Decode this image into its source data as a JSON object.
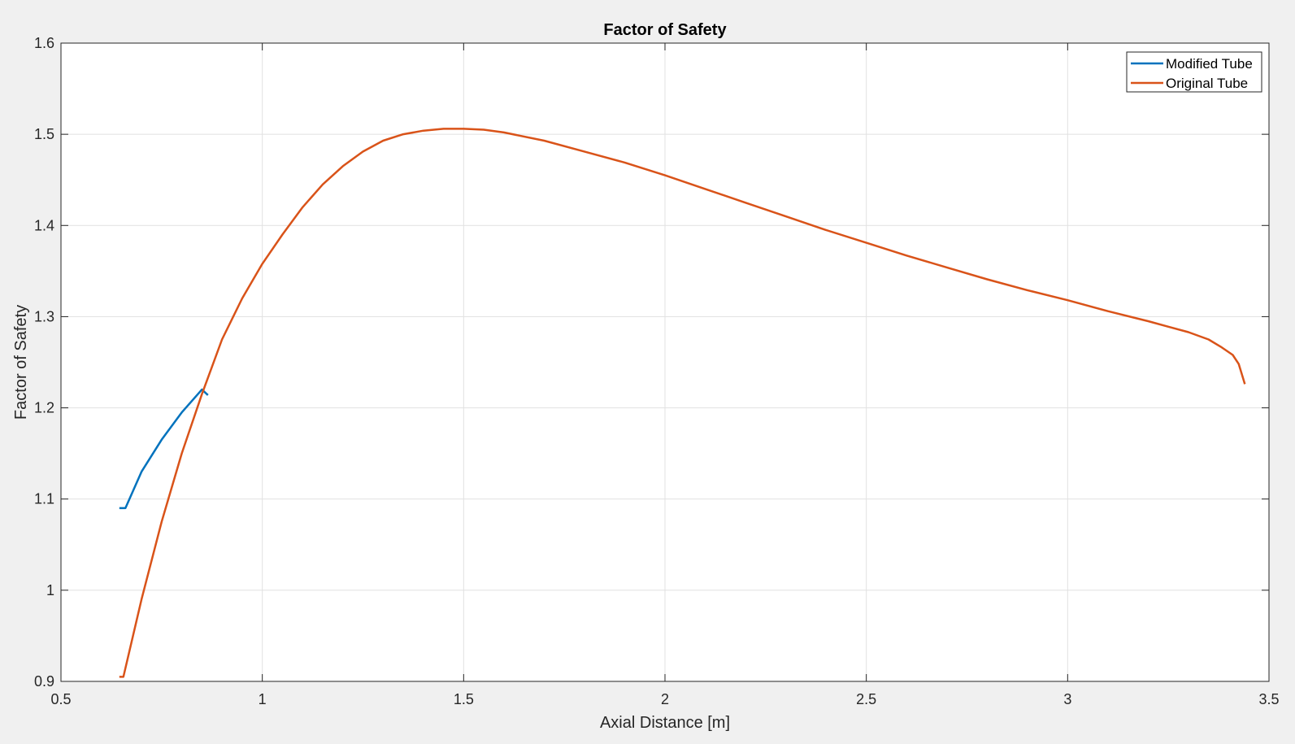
{
  "window": {
    "background": "#f0f0f0"
  },
  "chart_data": {
    "type": "line",
    "title": "Factor of Safety",
    "xlabel": "Axial Distance [m]",
    "ylabel": "Factor of Safety",
    "xlim": [
      0.5,
      3.5
    ],
    "ylim": [
      0.9,
      1.6
    ],
    "xticks": [
      0.5,
      1,
      1.5,
      2,
      2.5,
      3,
      3.5
    ],
    "xtick_labels": [
      "0.5",
      "1",
      "1.5",
      "2",
      "2.5",
      "3",
      "3.5"
    ],
    "yticks": [
      0.9,
      1.0,
      1.1,
      1.2,
      1.3,
      1.4,
      1.5,
      1.6
    ],
    "ytick_labels": [
      "0.9",
      "1",
      "1.1",
      "1.2",
      "1.3",
      "1.4",
      "1.5",
      "1.6"
    ],
    "grid": true,
    "legend_position": "top-right",
    "series": [
      {
        "name": "Modified Tube",
        "color": "#0072bd",
        "x": [
          0.645,
          0.66,
          0.7,
          0.75,
          0.8,
          0.85,
          0.865
        ],
        "y": [
          1.09,
          1.09,
          1.13,
          1.165,
          1.195,
          1.22,
          1.214
        ]
      },
      {
        "name": "Original Tube",
        "color": "#d95319",
        "x": [
          0.645,
          0.655,
          0.7,
          0.75,
          0.8,
          0.85,
          0.9,
          0.95,
          1.0,
          1.05,
          1.1,
          1.15,
          1.2,
          1.25,
          1.3,
          1.35,
          1.4,
          1.45,
          1.5,
          1.55,
          1.6,
          1.7,
          1.8,
          1.9,
          2.0,
          2.1,
          2.2,
          2.3,
          2.4,
          2.5,
          2.6,
          2.7,
          2.8,
          2.9,
          3.0,
          3.1,
          3.2,
          3.25,
          3.3,
          3.35,
          3.38,
          3.41,
          3.425,
          3.44
        ],
        "y": [
          0.905,
          0.905,
          0.99,
          1.075,
          1.15,
          1.215,
          1.275,
          1.32,
          1.358,
          1.39,
          1.42,
          1.445,
          1.465,
          1.481,
          1.493,
          1.5,
          1.504,
          1.506,
          1.506,
          1.505,
          1.502,
          1.493,
          1.481,
          1.469,
          1.455,
          1.44,
          1.425,
          1.41,
          1.395,
          1.381,
          1.367,
          1.354,
          1.341,
          1.329,
          1.318,
          1.306,
          1.295,
          1.289,
          1.283,
          1.275,
          1.267,
          1.258,
          1.248,
          1.226
        ]
      }
    ]
  }
}
